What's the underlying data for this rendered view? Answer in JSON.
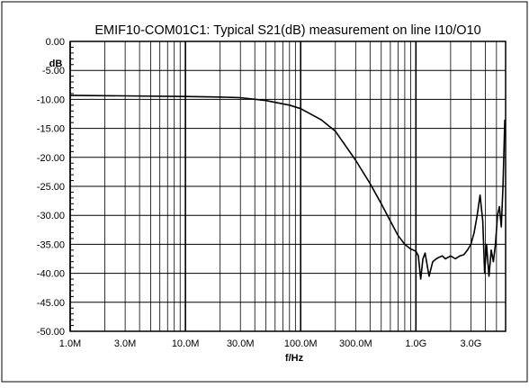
{
  "chart_data": {
    "type": "line",
    "title": "EMIF10-COM01C1: Typical S21(dB) measurement on line I10/O10",
    "xlabel": "f/Hz",
    "ylabel": "dB",
    "x_scale": "log",
    "xlim": [
      1000000,
      6000000000
    ],
    "ylim": [
      -50,
      0
    ],
    "grid": true,
    "x_ticks": [
      {
        "value": 1000000,
        "label": "1.0M"
      },
      {
        "value": 3000000,
        "label": "3.0M"
      },
      {
        "value": 10000000,
        "label": "10.0M"
      },
      {
        "value": 30000000,
        "label": "30.0M"
      },
      {
        "value": 100000000,
        "label": "100.0M"
      },
      {
        "value": 300000000,
        "label": "300.0M"
      },
      {
        "value": 1000000000,
        "label": "1.0G"
      },
      {
        "value": 3000000000,
        "label": "3.0G"
      }
    ],
    "y_ticks": [
      {
        "value": 0,
        "label": "0.00"
      },
      {
        "value": -5,
        "label": "-5.00"
      },
      {
        "value": -10,
        "label": "-10.00"
      },
      {
        "value": -15,
        "label": "-15.00"
      },
      {
        "value": -20,
        "label": "-20.00"
      },
      {
        "value": -25,
        "label": "-25.00"
      },
      {
        "value": -30,
        "label": "-30.00"
      },
      {
        "value": -35,
        "label": "-35.00"
      },
      {
        "value": -40,
        "label": "-40.00"
      },
      {
        "value": -45,
        "label": "-45.00"
      },
      {
        "value": -50,
        "label": "-50.00"
      }
    ],
    "series": [
      {
        "color": "#000000",
        "x": [
          1000000,
          3000000,
          10000000,
          20000000,
          30000000,
          50000000,
          80000000,
          100000000,
          150000000,
          200000000,
          300000000,
          400000000,
          500000000,
          600000000,
          700000000,
          800000000,
          900000000,
          950000000,
          1000000000,
          1050000000,
          1100000000,
          1150000000,
          1200000000,
          1300000000,
          1400000000,
          1500000000,
          1600000000,
          1700000000,
          1800000000,
          2000000000,
          2200000000,
          2400000000,
          2600000000,
          2800000000,
          3000000000,
          3200000000,
          3400000000,
          3600000000,
          3800000000,
          3950000000,
          4100000000,
          4300000000,
          4500000000,
          4700000000,
          4900000000,
          5100000000,
          5300000000,
          5500000000,
          5700000000,
          5900000000
        ],
        "y": [
          -9.3,
          -9.4,
          -9.5,
          -9.6,
          -9.7,
          -10.2,
          -11.0,
          -11.6,
          -13.5,
          -15.5,
          -20.5,
          -24.5,
          -28.0,
          -31.0,
          -33.5,
          -35.0,
          -35.8,
          -36.0,
          -36.2,
          -37.0,
          -41.0,
          -37.5,
          -36.5,
          -40.5,
          -38.0,
          -37.5,
          -37.2,
          -37.0,
          -37.5,
          -37.0,
          -37.5,
          -37.0,
          -36.8,
          -36.0,
          -35.0,
          -33.0,
          -30.0,
          -26.5,
          -31.0,
          -40.0,
          -35.0,
          -40.5,
          -36.0,
          -38.0,
          -35.0,
          -30.0,
          -28.5,
          -32.0,
          -25.0,
          -13.5
        ]
      }
    ]
  }
}
